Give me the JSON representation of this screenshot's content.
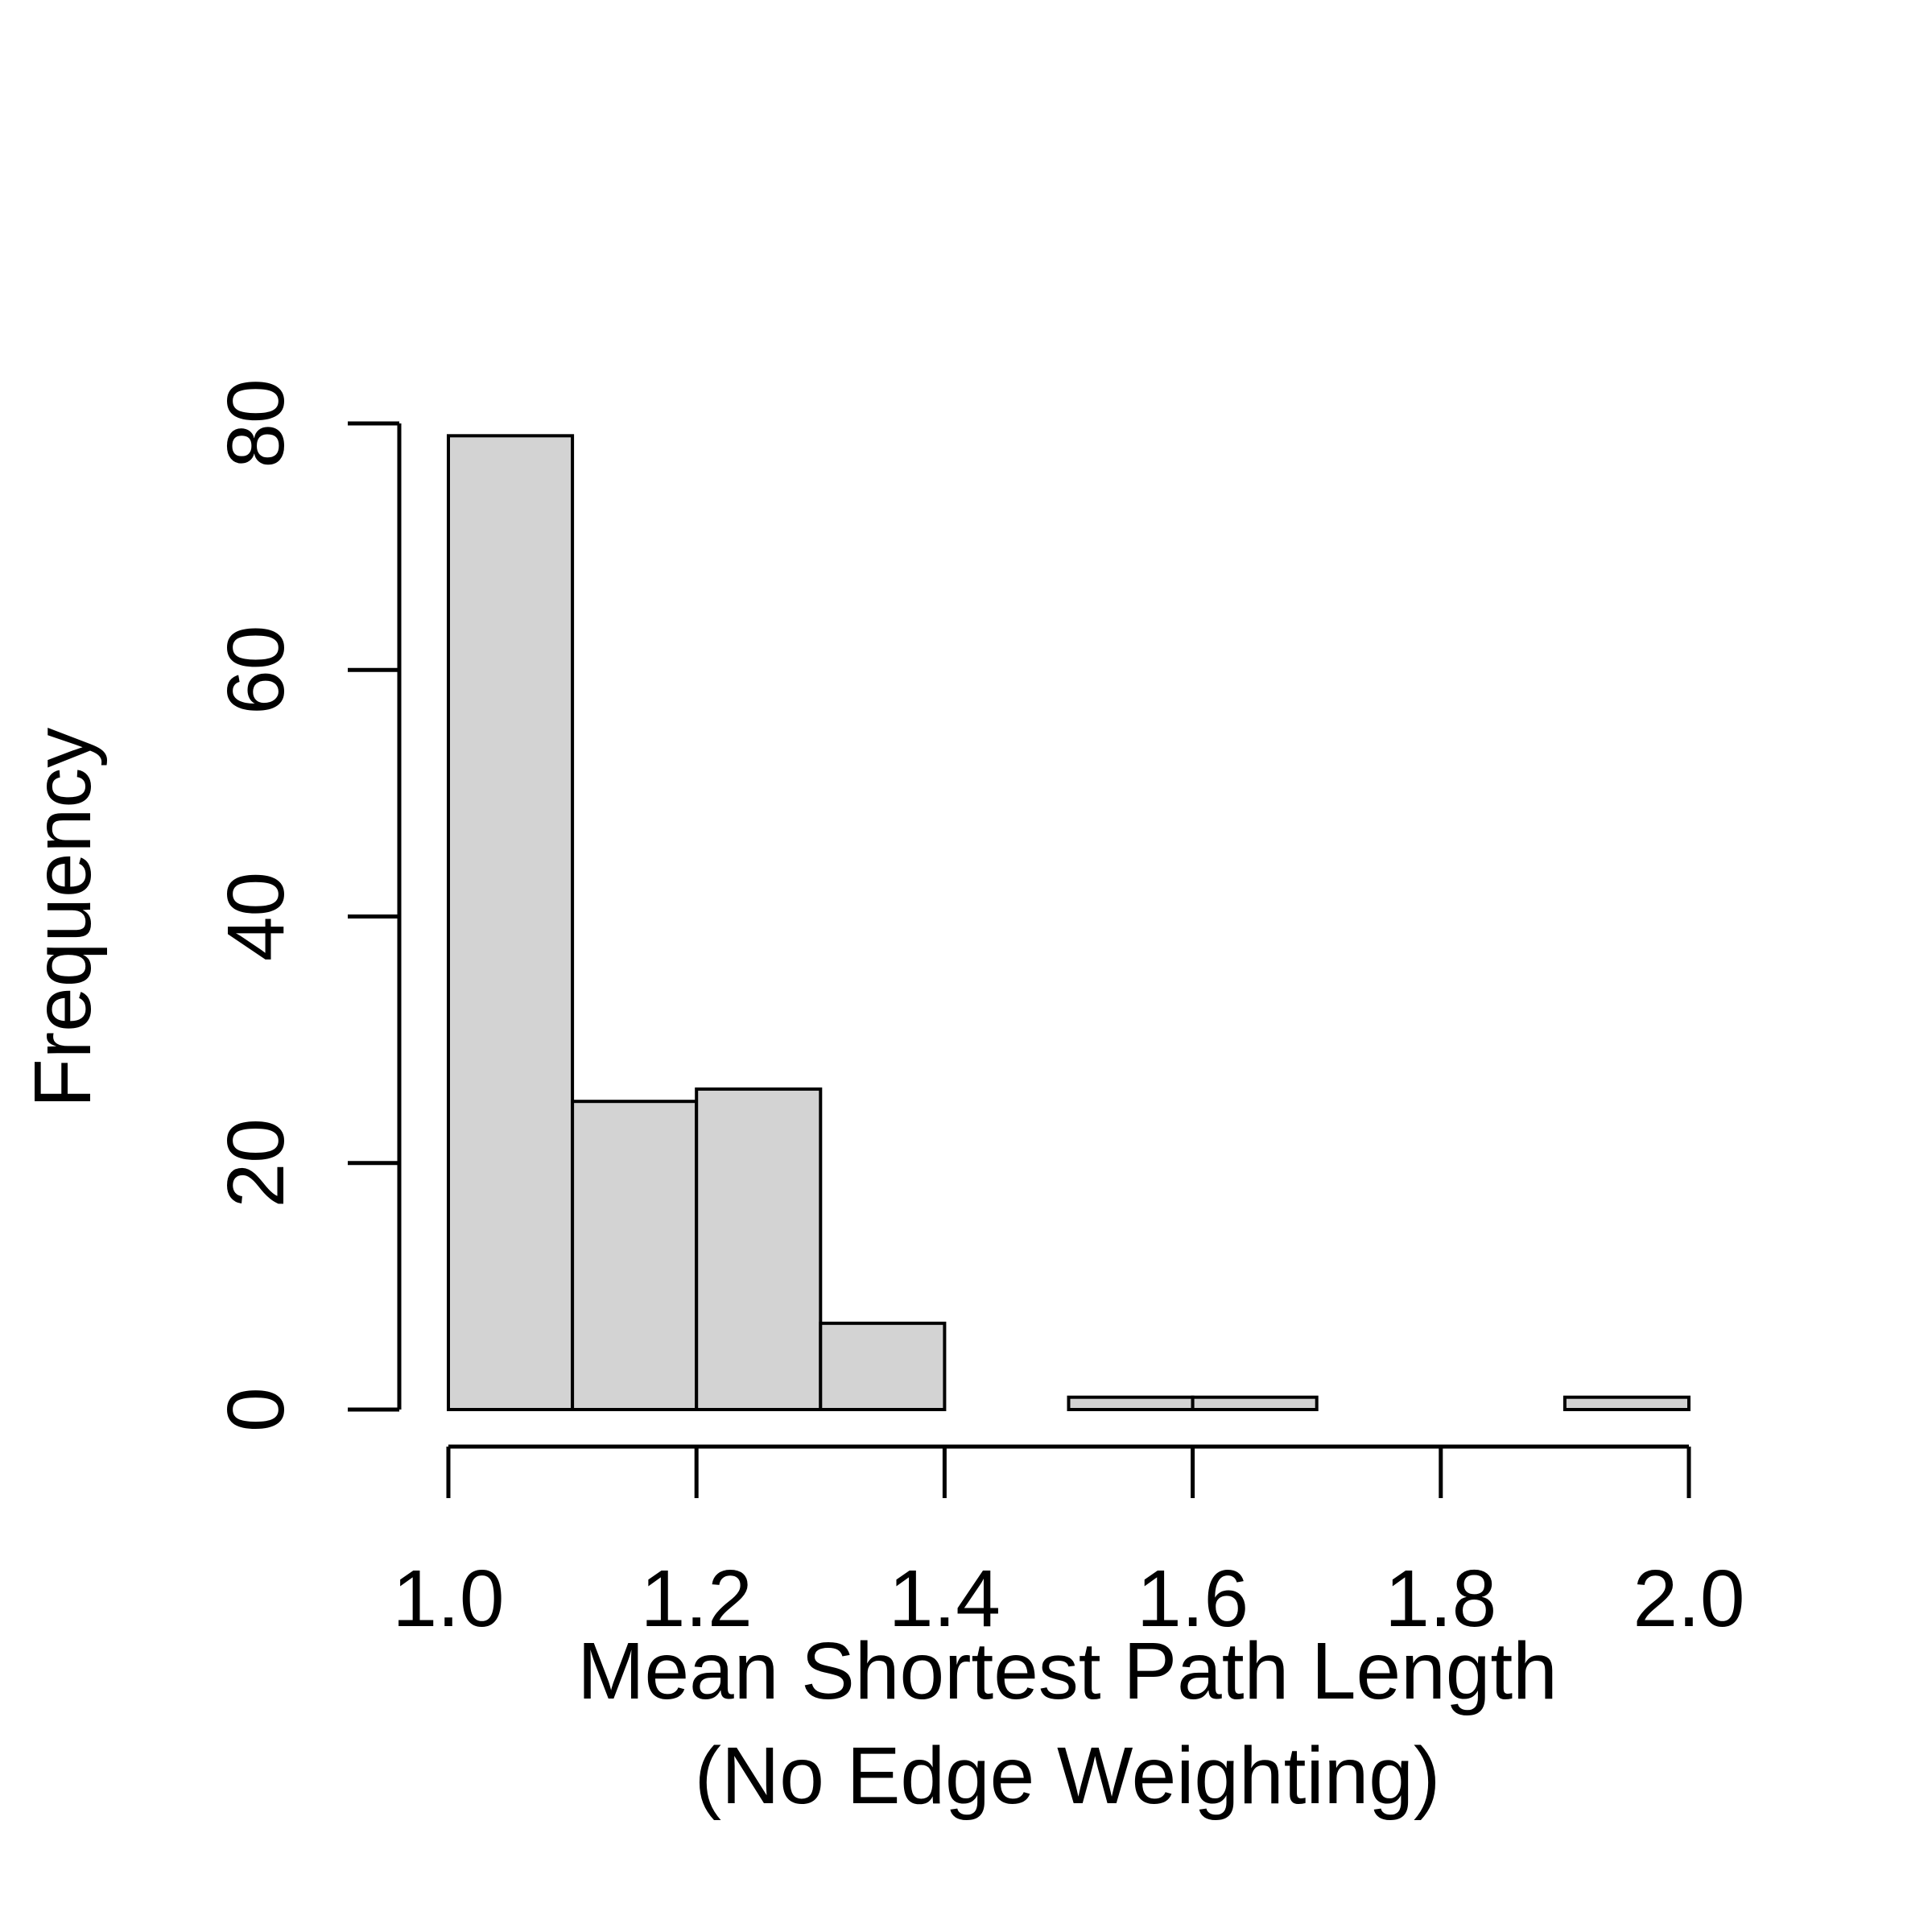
{
  "chart_data": {
    "type": "bar",
    "subtype": "histogram",
    "bins": [
      {
        "x0": 1.0,
        "x1": 1.1,
        "count": 79
      },
      {
        "x0": 1.1,
        "x1": 1.2,
        "count": 25
      },
      {
        "x0": 1.2,
        "x1": 1.3,
        "count": 26
      },
      {
        "x0": 1.3,
        "x1": 1.4,
        "count": 7
      },
      {
        "x0": 1.4,
        "x1": 1.5,
        "count": 0
      },
      {
        "x0": 1.5,
        "x1": 1.6,
        "count": 1
      },
      {
        "x0": 1.6,
        "x1": 1.7,
        "count": 1
      },
      {
        "x0": 1.7,
        "x1": 1.8,
        "count": 0
      },
      {
        "x0": 1.8,
        "x1": 1.9,
        "count": 0
      },
      {
        "x0": 1.9,
        "x1": 2.0,
        "count": 1
      }
    ],
    "title": "",
    "xlabel_lines": [
      "Mean Shortest Path Length",
      "(No Edge Weighting)"
    ],
    "ylabel": "Frequency",
    "xlim": [
      1.0,
      2.0
    ],
    "ylim": [
      0,
      80
    ],
    "x_ticks": [
      1.0,
      1.2,
      1.4,
      1.6,
      1.8,
      2.0
    ],
    "x_tick_labels": [
      "1.0",
      "1.2",
      "1.4",
      "1.6",
      "1.8",
      "2.0"
    ],
    "y_ticks": [
      0,
      20,
      40,
      60,
      80
    ],
    "y_tick_labels": [
      "0",
      "20",
      "40",
      "60",
      "80"
    ],
    "grid": false,
    "bar_fill": "#d3d3d3",
    "bar_stroke": "#000000"
  }
}
